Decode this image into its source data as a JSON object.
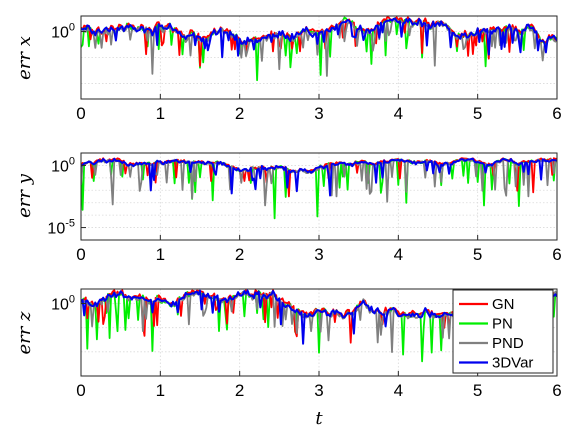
{
  "chart_data": {
    "type": "line",
    "xlabel": "t",
    "series_names": [
      "GN",
      "PN",
      "PND",
      "3DVar"
    ],
    "colors": {
      "GN": "#ff0000",
      "PN": "#00ee00",
      "PND": "#808080",
      "3DVar": "#0000ee"
    },
    "xlim": [
      0,
      6
    ],
    "xticks": [
      0,
      1,
      2,
      3,
      4,
      5,
      6
    ],
    "legend": {
      "placement": "lower-right",
      "entries": [
        "GN",
        "PN",
        "PND",
        "3DVar"
      ]
    },
    "panels": [
      {
        "ylabel": "err x",
        "yscale": "log",
        "ylim_log10": [
          -2.6,
          0.6
        ],
        "ytick_labels": [
          {
            "base": "10",
            "exp": "0",
            "log10": 0
          }
        ],
        "grid_log10": [
          0,
          -1,
          -2
        ]
      },
      {
        "ylabel": "err y",
        "yscale": "log",
        "ylim_log10": [
          -6,
          1
        ],
        "ytick_labels": [
          {
            "base": "10",
            "exp": "0",
            "log10": 0
          },
          {
            "base": "10",
            "exp": "-5",
            "log10": -5
          }
        ],
        "grid_log10": [
          0,
          -1,
          -2,
          -3,
          -4,
          -5
        ]
      },
      {
        "ylabel": "err z",
        "yscale": "log",
        "ylim_log10": [
          -3,
          0.6
        ],
        "ytick_labels": [
          {
            "base": "10",
            "exp": "0",
            "log10": 0
          }
        ],
        "grid_log10": [
          0,
          -1,
          -2,
          -3
        ]
      }
    ]
  }
}
